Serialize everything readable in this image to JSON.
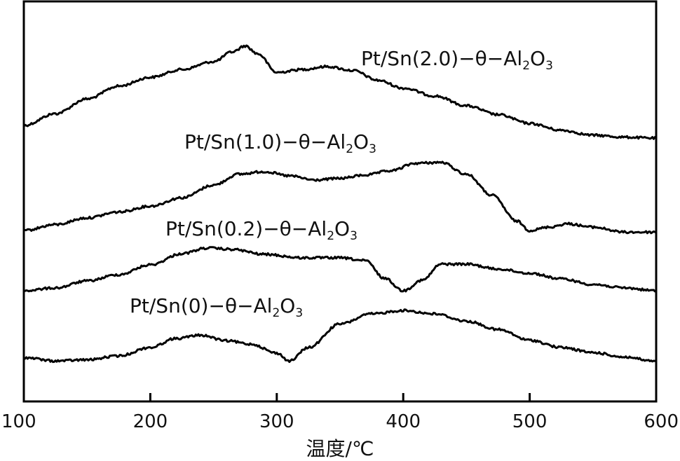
{
  "chart_data": {
    "type": "line",
    "title": "",
    "xlabel": "温度/℃",
    "ylabel": "",
    "xlim": [
      100,
      600
    ],
    "x_ticks": [
      100,
      200,
      300,
      400,
      500,
      600
    ],
    "y_ticks": [],
    "grid": false,
    "legend": "inline labels above each curve",
    "line_color": "#000000",
    "series": [
      {
        "name": "Pt/Sn(2.0)-θ-Al2O3",
        "label_parts": [
          "Pt/Sn(2.0)−θ−Al",
          "2",
          "O",
          "3"
        ],
        "x": [
          100,
          125,
          150,
          175,
          200,
          225,
          250,
          265,
          275,
          285,
          300,
          320,
          340,
          360,
          380,
          400,
          425,
          450,
          475,
          500,
          525,
          550,
          575,
          600
        ],
        "y": [
          0.15,
          0.27,
          0.42,
          0.55,
          0.64,
          0.72,
          0.8,
          0.9,
          0.96,
          0.88,
          0.69,
          0.72,
          0.75,
          0.71,
          0.61,
          0.53,
          0.45,
          0.35,
          0.26,
          0.17,
          0.1,
          0.05,
          0.03,
          0.02
        ]
      },
      {
        "name": "Pt/Sn(1.0)-θ-Al2O3",
        "label_parts": [
          "Pt/Sn(1.0)−θ−Al",
          "2",
          "O",
          "3"
        ],
        "x": [
          100,
          125,
          150,
          175,
          200,
          225,
          250,
          270,
          290,
          310,
          330,
          350,
          370,
          390,
          410,
          430,
          450,
          470,
          490,
          500,
          515,
          530,
          550,
          575,
          600
        ],
        "y": [
          0.05,
          0.12,
          0.2,
          0.27,
          0.34,
          0.44,
          0.59,
          0.72,
          0.75,
          0.7,
          0.65,
          0.67,
          0.71,
          0.76,
          0.85,
          0.86,
          0.72,
          0.47,
          0.16,
          0.05,
          0.09,
          0.13,
          0.09,
          0.03,
          0.03
        ]
      },
      {
        "name": "Pt/Sn(0.2)-θ-Al2O3",
        "label_parts": [
          "Pt/Sn(0.2)−θ−Al",
          "2",
          "O",
          "3"
        ],
        "x": [
          100,
          125,
          150,
          175,
          200,
          225,
          245,
          265,
          290,
          320,
          350,
          370,
          385,
          400,
          415,
          430,
          450,
          475,
          500,
          525,
          550,
          575,
          600
        ],
        "y": [
          0.1,
          0.14,
          0.24,
          0.33,
          0.47,
          0.63,
          0.71,
          0.69,
          0.62,
          0.57,
          0.57,
          0.53,
          0.28,
          0.1,
          0.25,
          0.48,
          0.48,
          0.41,
          0.35,
          0.27,
          0.19,
          0.14,
          0.1
        ]
      },
      {
        "name": "Pt/Sn(0)-θ-Al2O3",
        "label_parts": [
          "Pt/Sn(0)−θ−Al",
          "2",
          "O",
          "3"
        ],
        "x": [
          100,
          125,
          150,
          175,
          200,
          220,
          240,
          260,
          280,
          300,
          310,
          325,
          350,
          375,
          400,
          425,
          450,
          475,
          500,
          525,
          550,
          575,
          600
        ],
        "y": [
          0.12,
          0.06,
          0.08,
          0.15,
          0.3,
          0.46,
          0.52,
          0.42,
          0.36,
          0.2,
          0.06,
          0.3,
          0.72,
          0.9,
          0.96,
          0.9,
          0.77,
          0.62,
          0.43,
          0.3,
          0.21,
          0.13,
          0.05
        ]
      }
    ]
  }
}
